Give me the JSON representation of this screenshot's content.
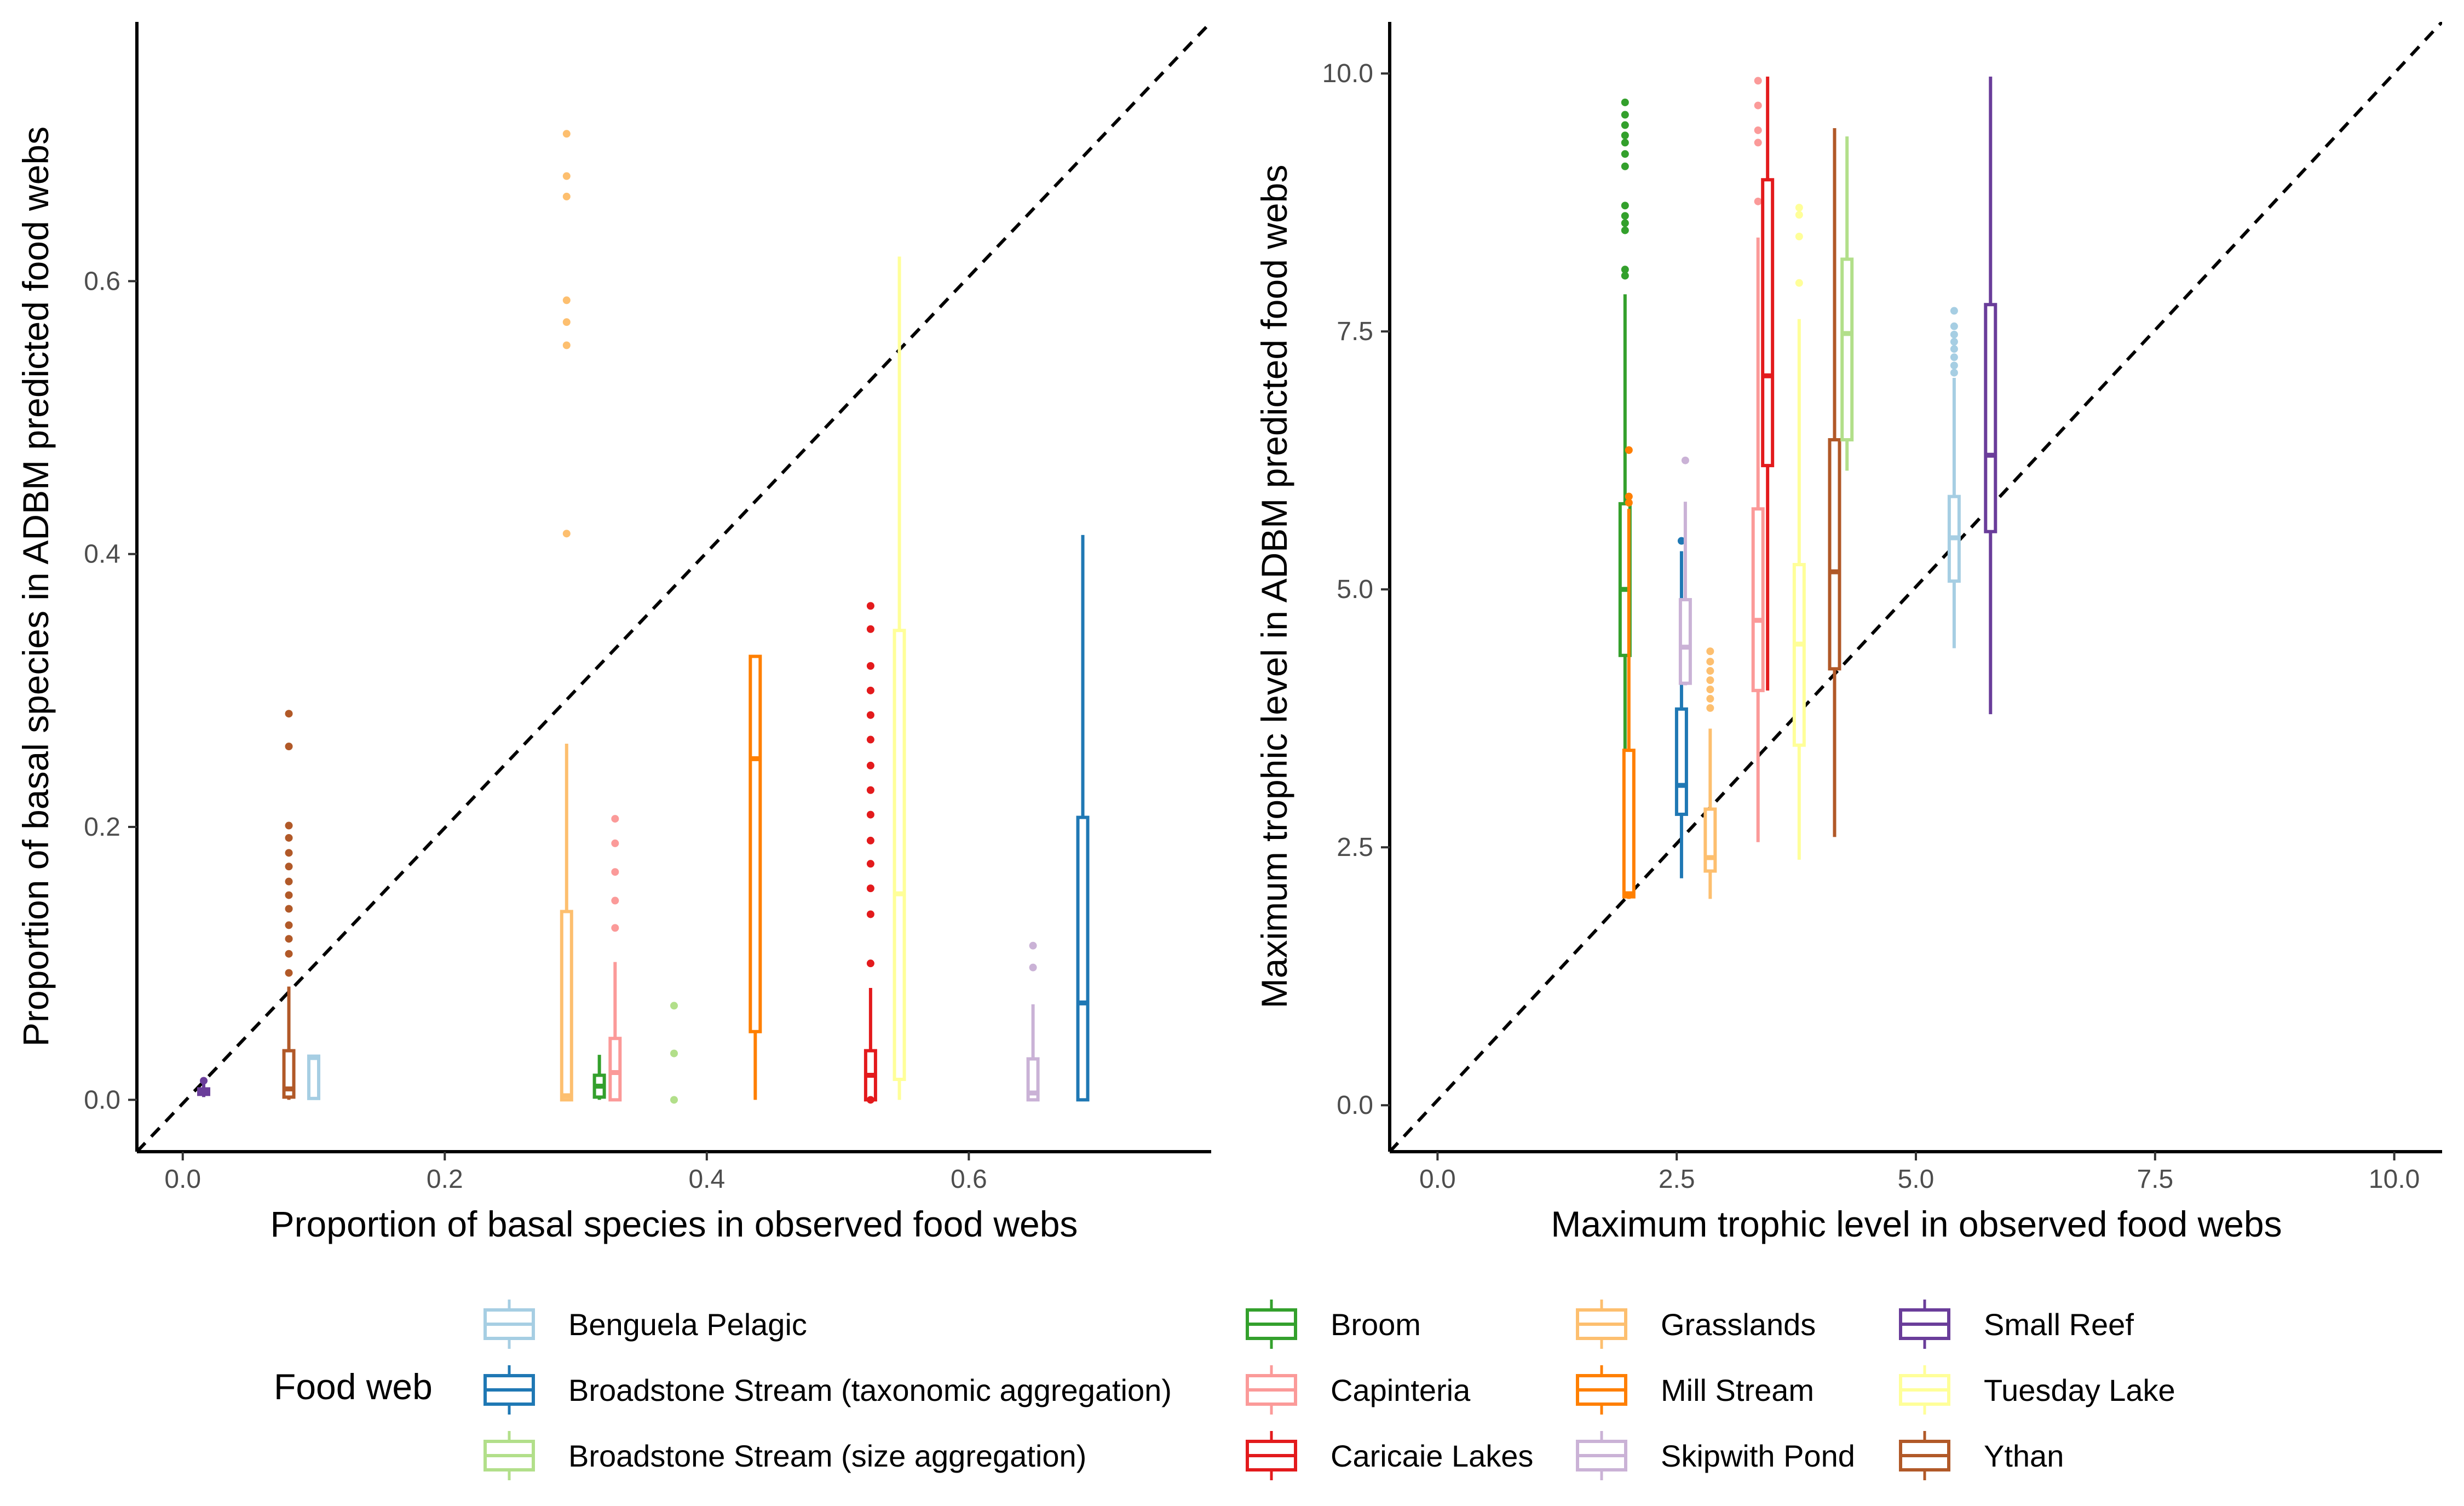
{
  "legend": {
    "title": "Food web",
    "entries": [
      {
        "name": "Benguela Pelagic",
        "color": "#A6CEE3"
      },
      {
        "name": "Broadstone Stream (taxonomic aggregation)",
        "color": "#1F78B4"
      },
      {
        "name": "Broadstone Stream (size aggregation)",
        "color": "#B2DF8A"
      },
      {
        "name": "Broom",
        "color": "#33A02C"
      },
      {
        "name": "Capinteria",
        "color": "#FB9A99"
      },
      {
        "name": "Caricaie Lakes",
        "color": "#E31A1C"
      },
      {
        "name": "Grasslands",
        "color": "#FDBF6F"
      },
      {
        "name": "Mill Stream",
        "color": "#FF7F00"
      },
      {
        "name": "Skipwith Pond",
        "color": "#CAB2D6"
      },
      {
        "name": "Small Reef",
        "color": "#6A3D9A"
      },
      {
        "name": "Tuesday Lake",
        "color": "#FFFF99"
      },
      {
        "name": "Ythan",
        "color": "#B15928"
      }
    ]
  },
  "chart_data": [
    {
      "type": "box",
      "xlabel": "Proportion of basal species in observed food webs",
      "ylabel": "Proportion of basal species in ADBM predicted food webs",
      "xlim": [
        -0.035,
        0.785
      ],
      "ylim": [
        -0.038,
        0.79
      ],
      "xticks": [
        0.0,
        0.2,
        0.4,
        0.6
      ],
      "yticks": [
        0.0,
        0.2,
        0.4,
        0.6
      ],
      "xtick_labels": [
        "0.0",
        "0.2",
        "0.4",
        "0.6"
      ],
      "ytick_labels": [
        "0.0",
        "0.2",
        "0.4",
        "0.6"
      ],
      "reference_line": "y = x",
      "grid": false,
      "series": [
        {
          "name": "Small Reef",
          "x": 0.016,
          "stats": {
            "min": 0.002,
            "q1": 0.004,
            "median": 0.006,
            "q3": 0.008,
            "max": 0.012
          },
          "outliers": [
            0.014
          ]
        },
        {
          "name": "Ythan",
          "x": 0.081,
          "stats": {
            "min": 0.0,
            "q1": 0.002,
            "median": 0.008,
            "q3": 0.036,
            "max": 0.083
          },
          "outliers": [
            0.093,
            0.107,
            0.118,
            0.128,
            0.14,
            0.15,
            0.16,
            0.171,
            0.181,
            0.192,
            0.201,
            0.259,
            0.283
          ]
        },
        {
          "name": "Benguela Pelagic",
          "x": 0.1,
          "stats": {
            "min": 0.0,
            "q1": 0.001,
            "median": 0.031,
            "q3": 0.032,
            "max": 0.033
          },
          "outliers": []
        },
        {
          "name": "Grasslands",
          "x": 0.293,
          "stats": {
            "min": 0.0,
            "q1": 0.0,
            "median": 0.003,
            "q3": 0.138,
            "max": 0.261
          },
          "outliers": [
            0.415,
            0.553,
            0.57,
            0.586,
            0.662,
            0.677,
            0.708
          ]
        },
        {
          "name": "Broom",
          "x": 0.318,
          "stats": {
            "min": 0.0,
            "q1": 0.002,
            "median": 0.01,
            "q3": 0.018,
            "max": 0.033
          },
          "outliers": []
        },
        {
          "name": "Capinteria",
          "x": 0.33,
          "stats": {
            "min": 0.0,
            "q1": 0.0,
            "median": 0.02,
            "q3": 0.045,
            "max": 0.101
          },
          "outliers": [
            0.126,
            0.146,
            0.167,
            0.188,
            0.206
          ]
        },
        {
          "name": "Broadstone Stream (size aggregation)",
          "x": 0.375,
          "stats": null,
          "outliers": [
            0.0,
            0.034,
            0.069
          ]
        },
        {
          "name": "Mill Stream",
          "x": 0.437,
          "stats": {
            "min": 0.0,
            "q1": 0.05,
            "median": 0.25,
            "q3": 0.325,
            "max": 0.325
          },
          "outliers": []
        },
        {
          "name": "Caricaie Lakes",
          "x": 0.525,
          "stats": {
            "min": 0.0,
            "q1": 0.0,
            "median": 0.018,
            "q3": 0.036,
            "max": 0.082
          },
          "outliers": [
            0.0,
            0.1,
            0.136,
            0.155,
            0.173,
            0.19,
            0.209,
            0.227,
            0.245,
            0.264,
            0.282,
            0.3,
            0.318,
            0.345,
            0.362
          ]
        },
        {
          "name": "Tuesday Lake",
          "x": 0.547,
          "stats": {
            "min": 0.0,
            "q1": 0.015,
            "median": 0.151,
            "q3": 0.344,
            "max": 0.618
          },
          "outliers": []
        },
        {
          "name": "Skipwith Pond",
          "x": 0.649,
          "stats": {
            "min": 0.0,
            "q1": 0.0,
            "median": 0.005,
            "q3": 0.03,
            "max": 0.07
          },
          "outliers": [
            0.097,
            0.113
          ]
        },
        {
          "name": "Broadstone Stream (taxonomic aggregation)",
          "x": 0.687,
          "stats": {
            "min": 0.0,
            "q1": 0.0,
            "median": 0.071,
            "q3": 0.207,
            "max": 0.414
          },
          "outliers": []
        }
      ]
    },
    {
      "type": "box",
      "xlabel": "Maximum trophic level in observed food webs",
      "ylabel": "Maximum trophic level in ADBM predicted food webs",
      "xlim": [
        -0.5,
        10.5
      ],
      "ylim": [
        -0.45,
        10.5
      ],
      "xticks": [
        0.0,
        2.5,
        5.0,
        7.5,
        10.0
      ],
      "yticks": [
        0.0,
        2.5,
        5.0,
        7.5,
        10.0
      ],
      "xtick_labels": [
        "0.0",
        "2.5",
        "5.0",
        "7.5",
        "10.0"
      ],
      "ytick_labels": [
        "0.0",
        "2.5",
        "5.0",
        "7.5",
        "10.0"
      ],
      "reference_line": "y = x",
      "grid": false,
      "series": [
        {
          "name": "Broom",
          "x": 1.96,
          "stats": {
            "min": 2.97,
            "q1": 4.36,
            "median": 5.0,
            "q3": 5.83,
            "max": 7.86
          },
          "outliers": [
            8.04,
            8.1,
            8.48,
            8.55,
            8.62,
            8.72,
            9.1,
            9.22,
            9.33,
            9.4,
            9.5,
            9.6,
            9.72
          ]
        },
        {
          "name": "Mill Stream",
          "x": 2.0,
          "stats": {
            "min": 2.0,
            "q1": 2.02,
            "median": 2.05,
            "q3": 3.44,
            "max": 5.78
          },
          "outliers": [
            5.84,
            5.9,
            6.35
          ]
        },
        {
          "name": "Broadstone Stream (taxonomic aggregation)",
          "x": 2.55,
          "stats": {
            "min": 2.2,
            "q1": 2.82,
            "median": 3.1,
            "q3": 3.84,
            "max": 5.37
          },
          "outliers": [
            5.47
          ]
        },
        {
          "name": "Skipwith Pond",
          "x": 2.59,
          "stats": {
            "min": 4.07,
            "q1": 4.09,
            "median": 4.44,
            "q3": 4.9,
            "max": 5.85
          },
          "outliers": [
            6.25
          ]
        },
        {
          "name": "Grasslands",
          "x": 2.85,
          "stats": {
            "min": 2.0,
            "q1": 2.27,
            "median": 2.4,
            "q3": 2.87,
            "max": 3.65
          },
          "outliers": [
            3.85,
            3.94,
            4.03,
            4.12,
            4.21,
            4.3,
            4.4
          ]
        },
        {
          "name": "Capinteria",
          "x": 3.35,
          "stats": {
            "min": 2.55,
            "q1": 4.02,
            "median": 4.7,
            "q3": 5.78,
            "max": 8.41
          },
          "outliers": [
            8.76,
            9.33,
            9.45,
            9.69,
            9.93
          ]
        },
        {
          "name": "Caricaie Lakes",
          "x": 3.45,
          "stats": {
            "min": 4.02,
            "q1": 6.2,
            "median": 7.07,
            "q3": 8.97,
            "max": 9.97
          },
          "outliers": []
        },
        {
          "name": "Tuesday Lake",
          "x": 3.78,
          "stats": {
            "min": 2.38,
            "q1": 3.49,
            "median": 4.47,
            "q3": 5.24,
            "max": 7.62
          },
          "outliers": [
            7.97,
            8.42,
            8.63,
            8.7
          ]
        },
        {
          "name": "Ythan",
          "x": 4.15,
          "stats": {
            "min": 2.6,
            "q1": 4.23,
            "median": 5.17,
            "q3": 6.45,
            "max": 9.47
          },
          "outliers": []
        },
        {
          "name": "Broadstone Stream (size aggregation)",
          "x": 4.28,
          "stats": {
            "min": 6.15,
            "q1": 6.45,
            "median": 7.48,
            "q3": 8.2,
            "max": 9.39
          },
          "outliers": []
        },
        {
          "name": "Benguela Pelagic",
          "x": 5.4,
          "stats": {
            "min": 4.43,
            "q1": 5.08,
            "median": 5.5,
            "q3": 5.9,
            "max": 7.05
          },
          "outliers": [
            7.1,
            7.17,
            7.25,
            7.33,
            7.4,
            7.47,
            7.55,
            7.7
          ]
        },
        {
          "name": "Small Reef",
          "x": 5.78,
          "stats": {
            "min": 3.79,
            "q1": 5.56,
            "median": 6.3,
            "q3": 7.76,
            "max": 9.97
          },
          "outliers": []
        }
      ]
    }
  ]
}
